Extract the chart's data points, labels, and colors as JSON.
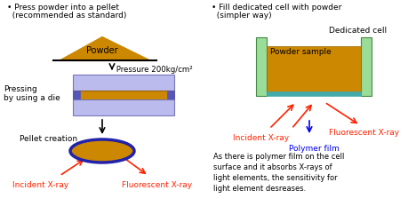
{
  "bg_color": "#ffffff",
  "left_header1": "• Press powder into a pellet",
  "left_header2": "  (recommended as standard)",
  "right_header1": "• Fill dedicated cell with powder",
  "right_header2": "  (simpler way)",
  "dedicated_cell_label": "Dedicated cell",
  "powder_sample_label": "Powder sample",
  "powder_label": "Powder",
  "pressure_label": " Pressure 200kg/cm²",
  "pressing_label": "Pressing\nby using a die",
  "pellet_label": "Pellet creation",
  "incident_xray1": "Incident X-ray",
  "fluorescent_xray1": "Fluorescent X-ray",
  "incident_xray2": "Incident X-ray",
  "fluorescent_xray2": "Fluorescent X-ray",
  "polymer_film": "Polymer film",
  "footnote": "As there is polymer film on the cell\nsurface and it absorbs X-rays of\nlight elements, the sensitivity for\nlight element desreases.",
  "orange": "#CC8800",
  "dark_orange": "#996600",
  "blue_light": "#BBBBEE",
  "blue_border": "#7777BB",
  "blue_side": "#5555BB",
  "green_light": "#99DD99",
  "green_dark": "#448844",
  "teal": "#44AAAA",
  "red": "#FF2200",
  "blue_arrow": "#0000EE",
  "black": "#000000"
}
